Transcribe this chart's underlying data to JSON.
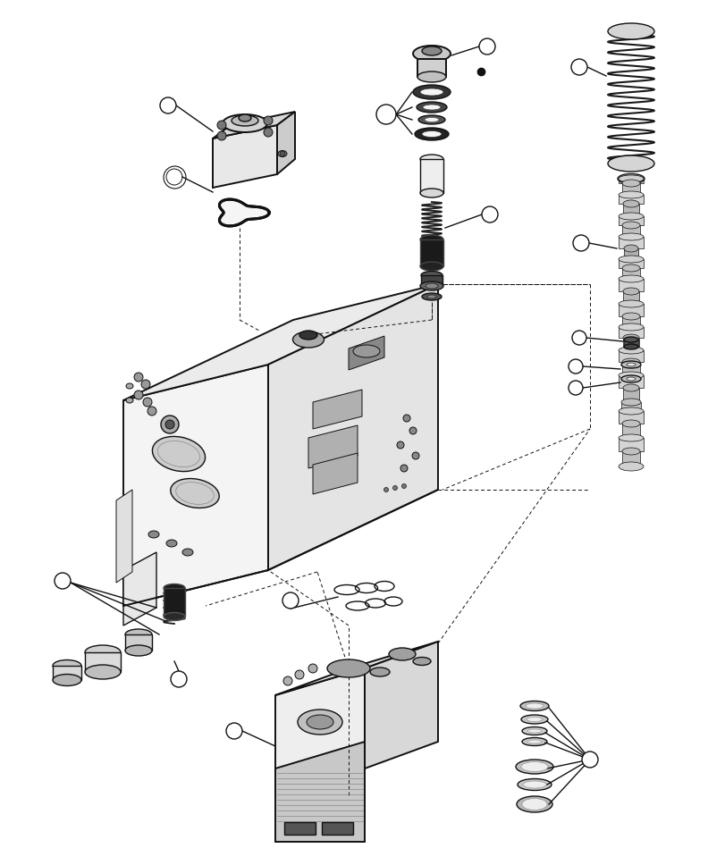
{
  "bg_color": "#ffffff",
  "line_color": "#111111",
  "fig_width": 7.92,
  "fig_height": 9.68,
  "dpi": 100
}
